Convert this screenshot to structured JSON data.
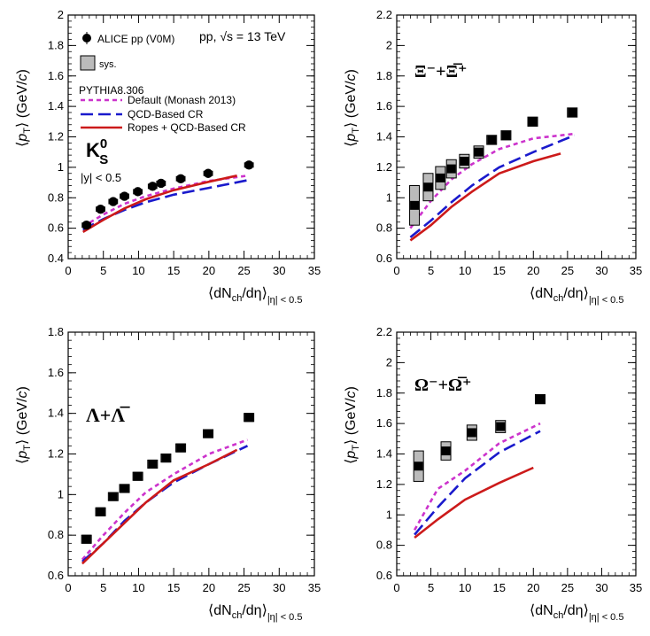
{
  "meta": {
    "colors": {
      "default": "#cc33cc",
      "qcd": "#1a1acc",
      "ropes": "#cc1a1a",
      "data": "#000000",
      "sys_fill": "#bbbbbb"
    }
  },
  "chart_data": [
    {
      "type": "line",
      "panel": "K0S",
      "xlabel": "⟨dN_ch/dη⟩_|η| < 0.5",
      "ylabel": "⟨p_T⟩ (GeV/c)",
      "xlim": [
        0,
        35
      ],
      "ylim": [
        0.4,
        2.0
      ],
      "xticks": [
        0,
        5,
        10,
        15,
        20,
        25,
        30,
        35
      ],
      "yticks": [
        0.4,
        0.6,
        0.8,
        1.0,
        1.2,
        1.4,
        1.6,
        1.8,
        2.0
      ],
      "ytick_labels": [
        "0.4",
        "0.6",
        "0.8",
        "1",
        "1.2",
        "1.4",
        "1.6",
        "1.8",
        "2"
      ],
      "particle_label": "K",
      "particle_sup": "0",
      "particle_sub": "S",
      "rapidity_label": "|y| < 0.5",
      "energy_label": "pp, √s = 13 TeV",
      "legend": {
        "data": "ALICE pp (V0M)",
        "sys": "sys.",
        "generator": "PYTHIA8.306",
        "default": "Default (Monash 2013)",
        "qcd": "QCD-Based CR",
        "ropes": "Ropes + QCD-Based CR"
      },
      "data_points": {
        "marker": "circle",
        "x": [
          2.6,
          4.6,
          6.4,
          8.0,
          9.9,
          12.0,
          13.2,
          16.0,
          19.9,
          25.7
        ],
        "y": [
          0.62,
          0.725,
          0.775,
          0.81,
          0.84,
          0.875,
          0.895,
          0.925,
          0.96,
          1.015
        ],
        "sys_height": [
          0.03,
          0.03,
          0.03,
          0.03,
          0.03,
          0.03,
          0.03,
          0.03,
          0.03,
          0.03
        ]
      },
      "series": [
        {
          "name": "Default (Monash 2013)",
          "key": "default",
          "x": [
            2.1,
            5,
            8,
            11,
            15,
            20,
            25.5
          ],
          "y": [
            0.61,
            0.69,
            0.76,
            0.81,
            0.86,
            0.91,
            0.945
          ]
        },
        {
          "name": "QCD-Based CR",
          "key": "qcd",
          "x": [
            2.1,
            5,
            8,
            11,
            15,
            20,
            25.5
          ],
          "y": [
            0.59,
            0.66,
            0.72,
            0.77,
            0.82,
            0.865,
            0.915
          ]
        },
        {
          "name": "Ropes + QCD-Based CR",
          "key": "ropes",
          "x": [
            2.1,
            5,
            8,
            11,
            15,
            20,
            24
          ],
          "y": [
            0.575,
            0.655,
            0.73,
            0.79,
            0.85,
            0.905,
            0.945
          ]
        }
      ]
    },
    {
      "type": "line",
      "panel": "Xi",
      "xlabel": "⟨dN_ch/dη⟩_|η| < 0.5",
      "ylabel": "⟨p_T⟩ (GeV/c)",
      "xlim": [
        0,
        35
      ],
      "ylim": [
        0.6,
        2.2
      ],
      "xticks": [
        0,
        5,
        10,
        15,
        20,
        25,
        30,
        35
      ],
      "yticks": [
        0.6,
        0.8,
        1.0,
        1.2,
        1.4,
        1.6,
        1.8,
        2.0,
        2.2
      ],
      "ytick_labels": [
        "0.6",
        "0.8",
        "1",
        "1.2",
        "1.4",
        "1.6",
        "1.8",
        "2",
        "2.2"
      ],
      "particle_label": "Ξ⁻+Ξ̅⁺",
      "data_points": {
        "marker": "square",
        "x": [
          2.6,
          4.6,
          6.4,
          8.0,
          9.9,
          12.0,
          13.9,
          16.0,
          19.9,
          25.7
        ],
        "y": [
          0.95,
          1.07,
          1.13,
          1.19,
          1.24,
          1.3,
          1.38,
          1.41,
          1.5,
          1.56
        ],
        "sys_height": [
          0.26,
          0.18,
          0.15,
          0.12,
          0.09,
          0.08,
          0.06,
          0.06,
          0.06,
          0.06
        ]
      },
      "series": [
        {
          "name": "Default (Monash 2013)",
          "key": "default",
          "x": [
            2,
            5,
            8,
            11,
            15,
            20,
            26
          ],
          "y": [
            0.8,
            0.98,
            1.12,
            1.22,
            1.32,
            1.39,
            1.42
          ]
        },
        {
          "name": "QCD-Based CR",
          "key": "qcd",
          "x": [
            2,
            5,
            8,
            11,
            15,
            20,
            26
          ],
          "y": [
            0.74,
            0.85,
            0.97,
            1.08,
            1.2,
            1.3,
            1.41
          ]
        },
        {
          "name": "Ropes + QCD-Based CR",
          "key": "ropes",
          "x": [
            2,
            5,
            8,
            11,
            15,
            20,
            24
          ],
          "y": [
            0.72,
            0.82,
            0.94,
            1.04,
            1.16,
            1.24,
            1.29
          ]
        }
      ]
    },
    {
      "type": "line",
      "panel": "Lambda",
      "xlabel": "⟨dN_ch/dη⟩_|η| < 0.5",
      "ylabel": "⟨p_T⟩ (GeV/c)",
      "xlim": [
        0,
        35
      ],
      "ylim": [
        0.6,
        1.8
      ],
      "xticks": [
        0,
        5,
        10,
        15,
        20,
        25,
        30,
        35
      ],
      "yticks": [
        0.6,
        0.8,
        1.0,
        1.2,
        1.4,
        1.6,
        1.8
      ],
      "ytick_labels": [
        "0.6",
        "0.8",
        "1",
        "1.2",
        "1.4",
        "1.6",
        "1.8"
      ],
      "particle_label": "Λ+Λ̅",
      "data_points": {
        "marker": "square",
        "x": [
          2.6,
          4.6,
          6.4,
          8.0,
          9.9,
          12.0,
          13.9,
          16.0,
          19.9,
          25.7
        ],
        "y": [
          0.78,
          0.915,
          0.99,
          1.03,
          1.09,
          1.15,
          1.18,
          1.23,
          1.3,
          1.38
        ],
        "sys_height": [
          0.04,
          0.04,
          0.04,
          0.04,
          0.04,
          0.04,
          0.04,
          0.04,
          0.04,
          0.04
        ]
      },
      "series": [
        {
          "name": "Default (Monash 2013)",
          "key": "default",
          "x": [
            2,
            5,
            8,
            11,
            15,
            20,
            25.5
          ],
          "y": [
            0.68,
            0.8,
            0.91,
            1.01,
            1.1,
            1.2,
            1.27
          ]
        },
        {
          "name": "QCD-Based CR",
          "key": "qcd",
          "x": [
            2,
            5,
            8,
            11,
            15,
            20,
            25.5
          ],
          "y": [
            0.67,
            0.76,
            0.87,
            0.96,
            1.06,
            1.15,
            1.24
          ]
        },
        {
          "name": "Ropes + QCD-Based CR",
          "key": "ropes",
          "x": [
            2,
            5,
            8,
            11,
            15,
            20,
            24
          ],
          "y": [
            0.66,
            0.76,
            0.86,
            0.96,
            1.07,
            1.15,
            1.22
          ]
        }
      ]
    },
    {
      "type": "line",
      "panel": "Omega",
      "xlabel": "⟨dN_ch/dη⟩_|η| < 0.5",
      "ylabel": "⟨p_T⟩ (GeV/c)",
      "xlim": [
        0,
        35
      ],
      "ylim": [
        0.6,
        2.2
      ],
      "xticks": [
        0,
        5,
        10,
        15,
        20,
        25,
        30,
        35
      ],
      "yticks": [
        0.6,
        0.8,
        1.0,
        1.2,
        1.4,
        1.6,
        1.8,
        2.0,
        2.2
      ],
      "ytick_labels": [
        "0.6",
        "0.8",
        "1",
        "1.2",
        "1.4",
        "1.6",
        "1.8",
        "2",
        "2.2"
      ],
      "particle_label": "Ω⁻+Ω̅⁺",
      "data_points": {
        "marker": "square",
        "x": [
          3.2,
          7.2,
          11.0,
          15.2,
          21.0
        ],
        "y": [
          1.32,
          1.42,
          1.54,
          1.58,
          1.76
        ],
        "sys_height": [
          0.2,
          0.12,
          0.1,
          0.08,
          0.06
        ]
      },
      "series": [
        {
          "name": "Default (Monash 2013)",
          "key": "default",
          "x": [
            2.6,
            6,
            10,
            15,
            21
          ],
          "y": [
            0.9,
            1.17,
            1.29,
            1.47,
            1.6
          ]
        },
        {
          "name": "QCD-Based CR",
          "key": "qcd",
          "x": [
            2.6,
            6,
            10,
            15,
            21
          ],
          "y": [
            0.87,
            1.05,
            1.24,
            1.41,
            1.55
          ]
        },
        {
          "name": "Ropes + QCD-Based CR",
          "key": "ropes",
          "x": [
            2.6,
            6,
            10,
            15,
            20
          ],
          "y": [
            0.85,
            0.97,
            1.1,
            1.21,
            1.31
          ]
        }
      ]
    }
  ]
}
